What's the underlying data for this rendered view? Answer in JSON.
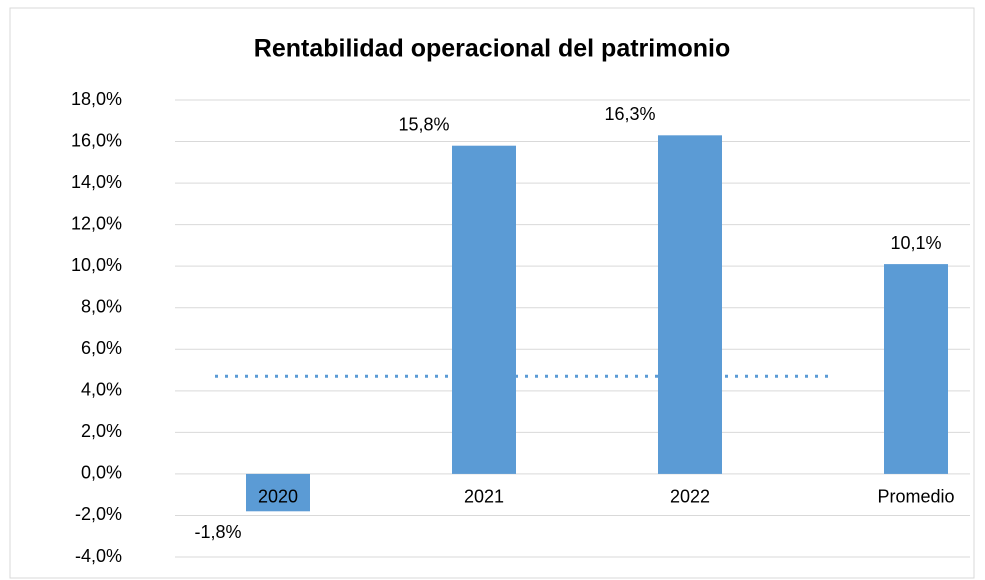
{
  "chart_data": {
    "type": "bar",
    "title": "Rentabilidad operacional del patrimonio",
    "categories": [
      "2020",
      "2021",
      "2022",
      "Promedio"
    ],
    "values": [
      -1.8,
      15.8,
      16.3,
      10.1
    ],
    "value_labels": [
      "-1,8%",
      "15,8%",
      "16,3%",
      "10,1%"
    ],
    "color": "#5b9bd5",
    "reference_line": {
      "value": 4.7,
      "color": "#5b9bd5",
      "style": "dotted"
    },
    "ylim": [
      -4,
      18
    ],
    "yticks": [
      {
        "value": -4,
        "label": "-4,0%"
      },
      {
        "value": -2,
        "label": "-2,0%"
      },
      {
        "value": 0,
        "label": "0,0%"
      },
      {
        "value": 2,
        "label": "2,0%"
      },
      {
        "value": 4,
        "label": "4,0%"
      },
      {
        "value": 6,
        "label": "6,0%"
      },
      {
        "value": 8,
        "label": "8,0%"
      },
      {
        "value": 10,
        "label": "10,0%"
      },
      {
        "value": 12,
        "label": "12,0%"
      },
      {
        "value": 14,
        "label": "14,0%"
      },
      {
        "value": 16,
        "label": "16,0%"
      },
      {
        "value": 18,
        "label": "18,0%"
      }
    ],
    "grid": true
  }
}
